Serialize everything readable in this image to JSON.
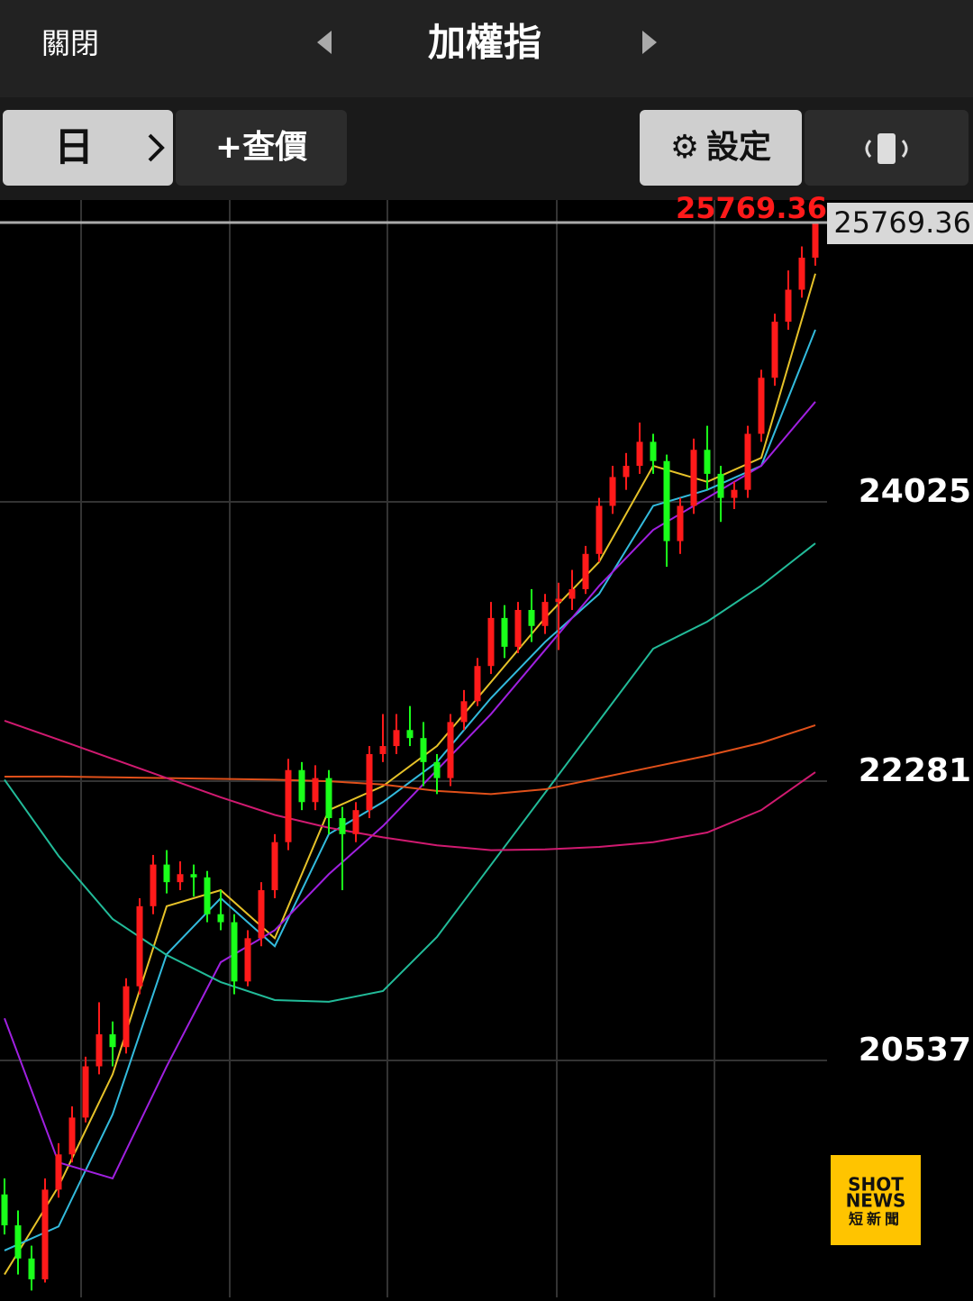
{
  "top_bar": {
    "close": "關閉",
    "title": "加權指"
  },
  "toolbar": {
    "period": "日",
    "quote": "+查價",
    "settings": "設定"
  },
  "watermark": {
    "line1": "SHOT",
    "line2": "NEWS",
    "line3": "短新聞"
  },
  "chart_data": {
    "type": "candlestick",
    "ylim": [
      19057,
      25910
    ],
    "yticks": [
      24025,
      22281,
      20537
    ],
    "last_price": 25769.36,
    "up_color": "#ff1a1a",
    "down_color": "#1aff1a",
    "candles": [
      [
        19700,
        19800,
        19450,
        19507
      ],
      [
        19507,
        19600,
        19200,
        19300
      ],
      [
        19300,
        19380,
        19100,
        19170
      ],
      [
        19170,
        19800,
        19150,
        19730
      ],
      [
        19730,
        20020,
        19680,
        19950
      ],
      [
        19950,
        20250,
        19900,
        20180
      ],
      [
        20180,
        20560,
        20150,
        20500
      ],
      [
        20500,
        20900,
        20450,
        20700
      ],
      [
        20700,
        20780,
        20500,
        20620
      ],
      [
        20620,
        21050,
        20580,
        21000
      ],
      [
        21000,
        21550,
        20950,
        21500
      ],
      [
        21500,
        21820,
        21450,
        21760
      ],
      [
        21760,
        21850,
        21580,
        21650
      ],
      [
        21650,
        21780,
        21600,
        21700
      ],
      [
        21700,
        21760,
        21560,
        21680
      ],
      [
        21680,
        21720,
        21400,
        21450
      ],
      [
        21450,
        21600,
        21350,
        21400
      ],
      [
        21400,
        21450,
        20950,
        21030
      ],
      [
        21030,
        21350,
        21000,
        21300
      ],
      [
        21300,
        21650,
        21250,
        21600
      ],
      [
        21600,
        21950,
        21550,
        21900
      ],
      [
        21900,
        22420,
        21850,
        22350
      ],
      [
        22350,
        22400,
        22100,
        22150
      ],
      [
        22150,
        22380,
        22100,
        22300
      ],
      [
        22300,
        22350,
        21950,
        22050
      ],
      [
        22050,
        22120,
        21600,
        21950
      ],
      [
        21950,
        22150,
        21900,
        22100
      ],
      [
        22100,
        22500,
        22050,
        22450
      ],
      [
        22450,
        22700,
        22400,
        22500
      ],
      [
        22500,
        22700,
        22450,
        22600
      ],
      [
        22600,
        22750,
        22500,
        22550
      ],
      [
        22550,
        22650,
        22250,
        22400
      ],
      [
        22400,
        22450,
        22200,
        22300
      ],
      [
        22300,
        22700,
        22250,
        22650
      ],
      [
        22650,
        22850,
        22600,
        22780
      ],
      [
        22780,
        23050,
        22750,
        23000
      ],
      [
        23000,
        23400,
        22950,
        23300
      ],
      [
        23300,
        23380,
        23050,
        23120
      ],
      [
        23120,
        23400,
        23080,
        23350
      ],
      [
        23350,
        23480,
        23150,
        23250
      ],
      [
        23250,
        23450,
        23200,
        23400
      ],
      [
        23400,
        23520,
        23100,
        23420
      ],
      [
        23420,
        23600,
        23350,
        23480
      ],
      [
        23480,
        23750,
        23450,
        23700
      ],
      [
        23700,
        24050,
        23650,
        24000
      ],
      [
        24000,
        24250,
        23950,
        24180
      ],
      [
        24180,
        24330,
        24100,
        24250
      ],
      [
        24250,
        24520,
        24200,
        24400
      ],
      [
        24400,
        24450,
        24200,
        24280
      ],
      [
        24280,
        24320,
        23620,
        23780
      ],
      [
        23780,
        24050,
        23700,
        24000
      ],
      [
        24000,
        24420,
        23950,
        24350
      ],
      [
        24350,
        24500,
        24100,
        24200
      ],
      [
        24200,
        24250,
        23900,
        24050
      ],
      [
        24050,
        24150,
        23980,
        24100
      ],
      [
        24100,
        24500,
        24050,
        24450
      ],
      [
        24450,
        24850,
        24400,
        24800
      ],
      [
        24800,
        25200,
        24750,
        25150
      ],
      [
        25150,
        25470,
        25100,
        25350
      ],
      [
        25350,
        25620,
        25300,
        25550
      ],
      [
        25550,
        25769.36,
        25500,
        25769.36
      ]
    ],
    "series": [
      {
        "color": "#e6c229",
        "values": [
          19200,
          19750,
          20450,
          21500,
          21600,
          21300,
          22100,
          22250,
          22500,
          22900,
          23300,
          23650,
          24250,
          24150,
          24300,
          25450
        ]
      },
      {
        "color": "#33bbdd",
        "values": [
          19350,
          19500,
          20200,
          21200,
          21550,
          21250,
          21950,
          22150,
          22400,
          22800,
          23150,
          23450,
          24000,
          24100,
          24250,
          25100
        ]
      },
      {
        "color": "#a020e0",
        "values": [
          20800,
          19900,
          19800,
          20500,
          21150,
          21350,
          21700,
          22000,
          22350,
          22700,
          23100,
          23500,
          23850,
          24050,
          24250,
          24650
        ]
      },
      {
        "color": "#22bb99",
        "values": [
          22290,
          21814,
          21420,
          21195,
          21026,
          20914,
          20903,
          20970,
          21308,
          21758,
          22208,
          22658,
          23108,
          23277,
          23502,
          23766
        ]
      },
      {
        "color": "#e0501a",
        "values": [
          22309,
          22310,
          22305,
          22300,
          22295,
          22290,
          22280,
          22260,
          22220,
          22200,
          22230,
          22300,
          22370,
          22440,
          22520,
          22630
        ]
      },
      {
        "color": "#d01a70",
        "values": [
          22658,
          22540,
          22420,
          22300,
          22180,
          22070,
          21990,
          21930,
          21880,
          21850,
          21855,
          21870,
          21900,
          21960,
          22100,
          22337
        ]
      }
    ]
  }
}
